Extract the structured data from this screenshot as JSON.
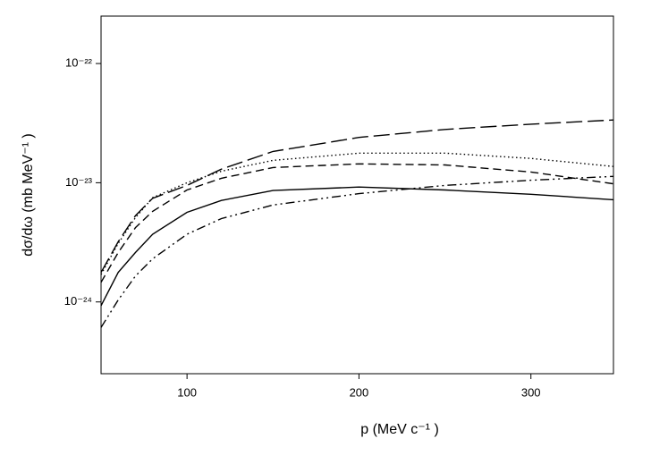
{
  "chart_data": {
    "type": "line",
    "x_label": "p (MeV c⁻¹ )",
    "y_label": "dσ/dω (mb MeV⁻¹ )",
    "yscale": "log",
    "xlim": [
      50,
      348
    ],
    "ylim": [
      2.5e-25,
      2.5e-22
    ],
    "xticks": [
      100,
      200,
      300
    ],
    "yticks": [
      {
        "value": 1e-22,
        "label": "10⁻²²"
      },
      {
        "value": 1e-23,
        "label": "10⁻²³"
      },
      {
        "value": 1e-24,
        "label": "10⁻²⁴"
      }
    ],
    "x": [
      50,
      60,
      70,
      80,
      100,
      120,
      150,
      200,
      250,
      300,
      348
    ],
    "series": [
      {
        "color": "#000000",
        "style": "long-dash",
        "values": [
          1.77e-24,
          3.2e-24,
          5.3e-24,
          7.4e-24,
          9.5e-24,
          1.3e-23,
          1.83e-23,
          2.4e-23,
          2.8e-23,
          3.1e-23,
          3.36e-23
        ]
      },
      {
        "color": "#000000",
        "style": "dotted",
        "values": [
          1.7e-24,
          3.1e-24,
          5.1e-24,
          7.5e-24,
          1e-23,
          1.25e-23,
          1.54e-23,
          1.77e-23,
          1.77e-23,
          1.6e-23,
          1.37e-23
        ]
      },
      {
        "color": "#000000",
        "style": "short-dash",
        "values": [
          1.46e-24,
          2.6e-24,
          4.2e-24,
          5.75e-24,
          8.7e-24,
          1.09e-23,
          1.34e-23,
          1.44e-23,
          1.41e-23,
          1.23e-23,
          9.8e-24
        ]
      },
      {
        "color": "#000000",
        "style": "solid",
        "values": [
          9.3e-25,
          1.77e-24,
          2.6e-24,
          3.7e-24,
          5.65e-24,
          7.1e-24,
          8.6e-24,
          9.2e-24,
          8.7e-24,
          8e-24,
          7.2e-24
        ]
      },
      {
        "color": "#000000",
        "style": "dash-dot-dot",
        "values": [
          6.1e-25,
          1.04e-24,
          1.65e-24,
          2.3e-24,
          3.7e-24,
          5e-24,
          6.5e-24,
          8.1e-24,
          9.5e-24,
          1.05e-23,
          1.13e-23
        ]
      }
    ]
  }
}
